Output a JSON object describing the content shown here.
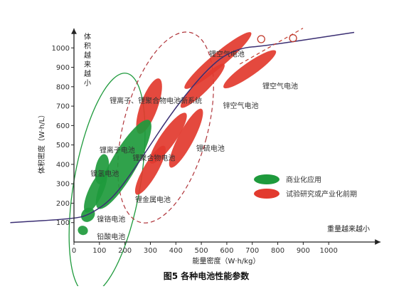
{
  "chart_data": {
    "type": "scatter",
    "caption": "图5   各种电池性能参数",
    "xlabel": "能量密度（W·h/kg）",
    "ylabel": "体积密度（W·h/L）",
    "y_direction_label": "体积越来越小",
    "x_direction_label": "重量越来越小",
    "xlim": [
      0,
      1100
    ],
    "ylim": [
      0,
      1100
    ],
    "x_ticks": [
      0,
      100,
      200,
      300,
      400,
      500,
      600,
      700,
      800,
      900,
      1000
    ],
    "y_ticks": [
      100,
      200,
      300,
      400,
      500,
      600,
      700,
      800,
      900,
      1000
    ],
    "grid": false,
    "legend_position": "right",
    "legend": [
      {
        "label": "商业化应用",
        "color": "#1e9a3c"
      },
      {
        "label": "试验研究或产业化前期",
        "color": "#e23a2e"
      }
    ],
    "annotations": [
      {
        "text": "锂空气电池",
        "x": 530,
        "y": 955
      },
      {
        "text": "锂空气电池",
        "x": 740,
        "y": 790
      },
      {
        "text": "锌空气电池",
        "x": 585,
        "y": 690
      },
      {
        "text": "锂离子、锂聚合物电池新系统",
        "x": 140,
        "y": 715
      },
      {
        "text": "锂离子电池",
        "x": 100,
        "y": 460
      },
      {
        "text": "锂聚合物电池",
        "x": 230,
        "y": 420
      },
      {
        "text": "锂硫电池",
        "x": 480,
        "y": 470
      },
      {
        "text": "镍氢电池",
        "x": 65,
        "y": 340
      },
      {
        "text": "锂金属电池",
        "x": 240,
        "y": 205
      },
      {
        "text": "镍铬电池",
        "x": 90,
        "y": 105
      },
      {
        "text": "铅酸电池",
        "x": 90,
        "y": 15
      }
    ],
    "regions_commercial": [
      {
        "x": 35,
        "y": 60,
        "rx": 20,
        "ry": 18,
        "angle": 20
      },
      {
        "x": 55,
        "y": 140,
        "rx": 25,
        "ry": 30,
        "angle": 40
      },
      {
        "x": 85,
        "y": 260,
        "rx": 28,
        "ry": 90,
        "angle": 25
      },
      {
        "x": 110,
        "y": 375,
        "rx": 26,
        "ry": 60,
        "angle": 10
      },
      {
        "x": 195,
        "y": 400,
        "rx": 50,
        "ry": 200,
        "angle": 30
      }
    ],
    "regions_research": [
      {
        "x": 300,
        "y": 370,
        "rx": 28,
        "ry": 110,
        "angle": 30
      },
      {
        "x": 370,
        "y": 535,
        "rx": 30,
        "ry": 120,
        "angle": 35
      },
      {
        "x": 440,
        "y": 535,
        "rx": 30,
        "ry": 130,
        "angle": 28
      },
      {
        "x": 565,
        "y": 935,
        "rx": 28,
        "ry": 170,
        "angle": 50
      },
      {
        "x": 690,
        "y": 890,
        "rx": 26,
        "ry": 125,
        "angle": 55
      },
      {
        "x": 505,
        "y": 805,
        "rx": 25,
        "ry": 120,
        "angle": 45
      },
      {
        "x": 295,
        "y": 700,
        "rx": 34,
        "ry": 115,
        "angle": 20
      }
    ],
    "boundary_curve": [
      [
        -250,
        100
      ],
      [
        0,
        120
      ],
      [
        60,
        140
      ],
      [
        150,
        220
      ],
      [
        250,
        400
      ],
      [
        400,
        700
      ],
      [
        550,
        930
      ],
      [
        650,
        1000
      ],
      [
        750,
        1010
      ],
      [
        1100,
        1080
      ]
    ],
    "lithium_ion_range": {
      "x": 130,
      "y": 300,
      "rx": 130,
      "ry": 440,
      "angle": 10
    },
    "lithium_system_range": {
      "x": 360,
      "y": 590,
      "rx": 165,
      "ry": 385,
      "angle": 15
    },
    "future_trend_points": [
      {
        "x": 735,
        "y": 1045
      },
      {
        "x": 860,
        "y": 1050
      }
    ]
  }
}
